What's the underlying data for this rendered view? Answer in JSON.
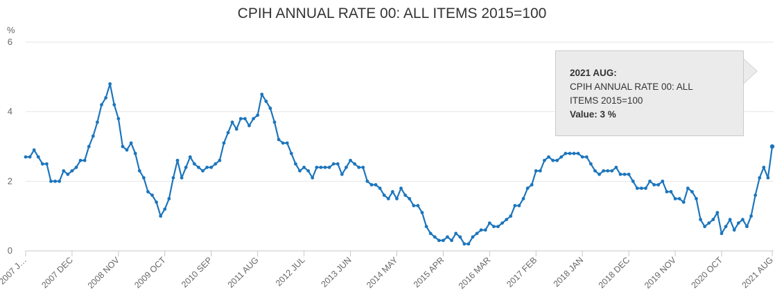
{
  "chart_data": {
    "type": "line",
    "title": "CPIH ANNUAL RATE 00: ALL ITEMS 2015=100",
    "ylabel": "%",
    "xlabel": "",
    "ylim": [
      0,
      6
    ],
    "yticks": [
      0,
      2,
      4,
      6
    ],
    "grid": true,
    "x_tick_labels": [
      "2007 J…",
      "2007 DEC",
      "2008 NOV",
      "2009 OCT",
      "2010 SEP",
      "2011 AUG",
      "2012 JUL",
      "2013 JUN",
      "2014 MAY",
      "2015 APR",
      "2016 MAR",
      "2017 FEB",
      "2018 JAN",
      "2018 DEC",
      "2019 NOV",
      "2020 OCT",
      "2021 AUG"
    ],
    "start": "2007 JAN",
    "end": "2021 AUG",
    "series": [
      {
        "name": "CPIH ANNUAL RATE 00: ALL ITEMS 2015=100",
        "color": "#1c75bc",
        "values": [
          2.7,
          2.7,
          2.9,
          2.7,
          2.5,
          2.5,
          2.0,
          2.0,
          2.0,
          2.3,
          2.2,
          2.3,
          2.4,
          2.6,
          2.6,
          3.0,
          3.3,
          3.7,
          4.2,
          4.4,
          4.8,
          4.2,
          3.8,
          3.0,
          2.9,
          3.1,
          2.8,
          2.3,
          2.1,
          1.7,
          1.6,
          1.4,
          1.0,
          1.2,
          1.5,
          2.1,
          2.6,
          2.1,
          2.4,
          2.7,
          2.5,
          2.4,
          2.3,
          2.4,
          2.4,
          2.5,
          2.6,
          3.1,
          3.4,
          3.7,
          3.5,
          3.8,
          3.8,
          3.6,
          3.8,
          3.9,
          4.5,
          4.3,
          4.1,
          3.7,
          3.2,
          3.1,
          3.1,
          2.8,
          2.5,
          2.3,
          2.4,
          2.3,
          2.1,
          2.4,
          2.4,
          2.4,
          2.4,
          2.5,
          2.5,
          2.2,
          2.4,
          2.6,
          2.5,
          2.4,
          2.4,
          2.0,
          1.9,
          1.9,
          1.8,
          1.6,
          1.5,
          1.7,
          1.5,
          1.8,
          1.6,
          1.5,
          1.3,
          1.3,
          1.1,
          0.7,
          0.5,
          0.4,
          0.3,
          0.3,
          0.4,
          0.3,
          0.5,
          0.4,
          0.2,
          0.2,
          0.4,
          0.5,
          0.6,
          0.6,
          0.8,
          0.7,
          0.7,
          0.8,
          0.9,
          1.0,
          1.3,
          1.3,
          1.5,
          1.8,
          1.9,
          2.3,
          2.3,
          2.6,
          2.7,
          2.6,
          2.6,
          2.7,
          2.8,
          2.8,
          2.8,
          2.8,
          2.7,
          2.7,
          2.5,
          2.3,
          2.2,
          2.3,
          2.3,
          2.3,
          2.4,
          2.2,
          2.2,
          2.2,
          2.0,
          1.8,
          1.8,
          1.8,
          2.0,
          1.9,
          1.9,
          2.0,
          1.7,
          1.7,
          1.5,
          1.5,
          1.4,
          1.8,
          1.7,
          1.5,
          0.9,
          0.7,
          0.8,
          0.9,
          1.1,
          0.5,
          0.7,
          0.9,
          0.6,
          0.8,
          0.9,
          0.7,
          1.0,
          1.6,
          2.1,
          2.4,
          2.1,
          3.0
        ]
      }
    ]
  },
  "tooltip": {
    "date": "2021 AUG:",
    "series_line1": "CPIH ANNUAL RATE 00: ALL",
    "series_line2": "ITEMS 2015=100",
    "value": "Value: 3 %"
  }
}
